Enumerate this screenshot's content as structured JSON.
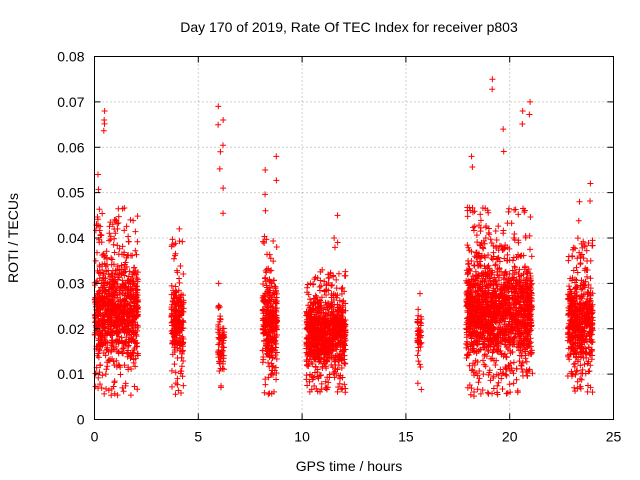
{
  "chart_data": {
    "type": "scatter",
    "title": "Day 170 of 2019, Rate Of TEC Index for receiver p803",
    "xlabel": "GPS time / hours",
    "ylabel": "ROTI / TECUs",
    "xlim": [
      0,
      25
    ],
    "ylim": [
      0,
      0.08
    ],
    "xticks": [
      0,
      5,
      10,
      15,
      20,
      25
    ],
    "xtick_labels": [
      "0",
      "5",
      "10",
      "15",
      "20",
      "25"
    ],
    "yticks": [
      0,
      0.01,
      0.02,
      0.03,
      0.04,
      0.05,
      0.06,
      0.07,
      0.08
    ],
    "ytick_labels": [
      "0",
      "0.01",
      "0.02",
      "0.03",
      "0.04",
      "0.05",
      "0.06",
      "0.07",
      "0.08"
    ],
    "grid": true,
    "marker": "+",
    "color": "#ff0000",
    "clusters": [
      {
        "x0": 0.0,
        "x1": 2.1,
        "lo": 0.005,
        "hi": 0.047,
        "peaks": [
          0.054,
          0.066,
          0.068
        ],
        "n": 900
      },
      {
        "x0": 3.7,
        "x1": 4.3,
        "lo": 0.005,
        "hi": 0.04,
        "peaks": [
          0.042
        ],
        "n": 220
      },
      {
        "x0": 5.95,
        "x1": 6.25,
        "lo": 0.006,
        "hi": 0.025,
        "peaks": [
          0.03,
          0.051,
          0.059,
          0.066,
          0.069
        ],
        "n": 70
      },
      {
        "x0": 8.1,
        "x1": 8.8,
        "lo": 0.005,
        "hi": 0.04,
        "peaks": [
          0.046,
          0.055,
          0.058
        ],
        "n": 320
      },
      {
        "x0": 10.2,
        "x1": 12.1,
        "lo": 0.006,
        "hi": 0.033,
        "peaks": [
          0.04,
          0.045
        ],
        "n": 900
      },
      {
        "x0": 15.55,
        "x1": 15.75,
        "lo": 0.006,
        "hi": 0.03,
        "peaks": [],
        "n": 45
      },
      {
        "x0": 17.9,
        "x1": 21.1,
        "lo": 0.005,
        "hi": 0.047,
        "peaks": [
          0.058,
          0.064,
          0.068,
          0.07,
          0.075
        ],
        "n": 1500
      },
      {
        "x0": 22.8,
        "x1": 24.0,
        "lo": 0.006,
        "hi": 0.04,
        "peaks": [
          0.048,
          0.052
        ],
        "n": 520
      }
    ]
  }
}
